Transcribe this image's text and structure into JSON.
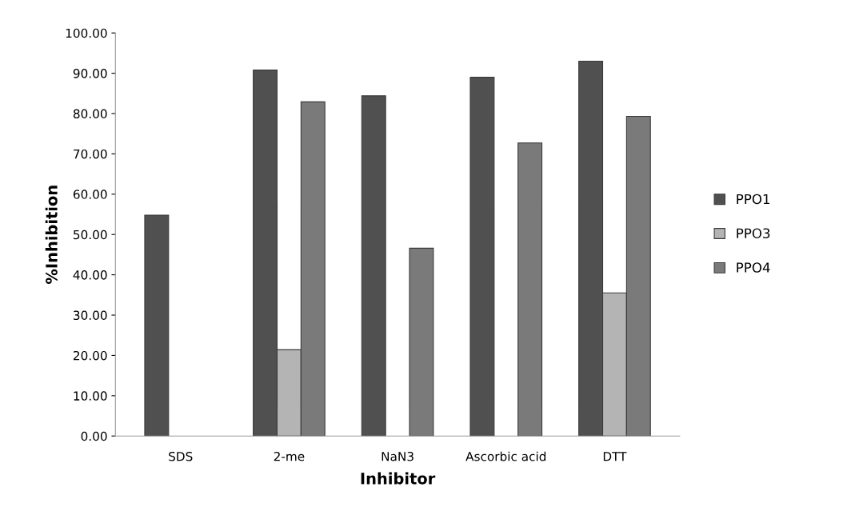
{
  "chart_data": {
    "type": "bar",
    "xlabel": "Inhibitor",
    "ylabel": "%Inhibition",
    "categories": [
      "SDS",
      "2-me",
      "NaN3",
      "Ascorbic acid",
      "DTT"
    ],
    "series": [
      {
        "name": "PPO1",
        "color": "#505050",
        "values": [
          54.8,
          90.8,
          84.4,
          89.0,
          93.0
        ]
      },
      {
        "name": "PPO3",
        "color": "#b4b4b4",
        "values": [
          null,
          21.4,
          null,
          null,
          35.5
        ]
      },
      {
        "name": "PPO4",
        "color": "#7a7a7a",
        "values": [
          null,
          82.9,
          46.6,
          72.7,
          79.3
        ]
      }
    ],
    "ylim": [
      0,
      100
    ],
    "yticks": [
      {
        "value": 0,
        "label": "0.00"
      },
      {
        "value": 10,
        "label": "10.00"
      },
      {
        "value": 20,
        "label": "20.00"
      },
      {
        "value": 30,
        "label": "30.00"
      },
      {
        "value": 40,
        "label": "40.00"
      },
      {
        "value": 50,
        "label": "50.00"
      },
      {
        "value": 60,
        "label": "60.00"
      },
      {
        "value": 70,
        "label": "70.00"
      },
      {
        "value": 80,
        "label": "80.00"
      },
      {
        "value": 90,
        "label": "90.00"
      },
      {
        "value": 100,
        "label": "100.00"
      }
    ],
    "grid": false,
    "legend": "right"
  }
}
